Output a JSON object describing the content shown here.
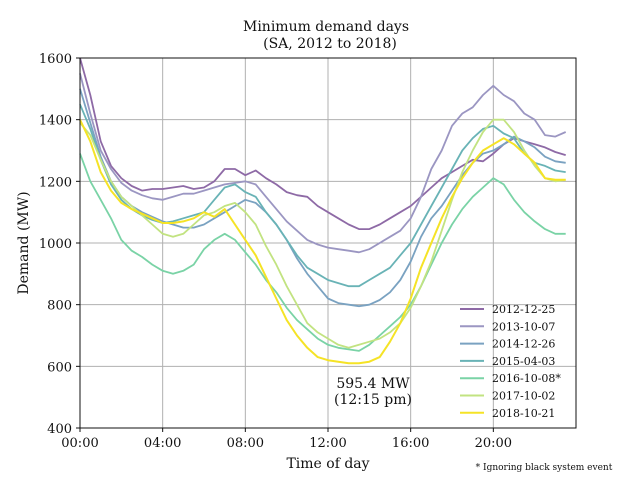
{
  "chart_data": {
    "type": "line",
    "title": "Minimum demand days",
    "subtitle": "(SA,  2012 to 2018)",
    "xlabel": "Time of day",
    "ylabel": "Demand (MW)",
    "ylim": [
      400,
      1600
    ],
    "xlim": [
      "00:00",
      "24:00"
    ],
    "x_ticks": [
      "00:00",
      "04:00",
      "08:00",
      "12:00",
      "16:00",
      "20:00"
    ],
    "y_ticks": [
      400,
      600,
      800,
      1000,
      1200,
      1400,
      1600
    ],
    "grid": true,
    "legend_position": "lower-right",
    "x": [
      "00:00",
      "00:30",
      "01:00",
      "01:30",
      "02:00",
      "02:30",
      "03:00",
      "03:30",
      "04:00",
      "04:30",
      "05:00",
      "05:30",
      "06:00",
      "06:30",
      "07:00",
      "07:30",
      "08:00",
      "08:30",
      "09:00",
      "09:30",
      "10:00",
      "10:30",
      "11:00",
      "11:30",
      "12:00",
      "12:30",
      "13:00",
      "13:30",
      "14:00",
      "14:30",
      "15:00",
      "15:30",
      "16:00",
      "16:30",
      "17:00",
      "17:30",
      "18:00",
      "18:30",
      "19:00",
      "19:30",
      "20:00",
      "20:30",
      "21:00",
      "21:30",
      "22:00",
      "22:30",
      "23:00",
      "23:30"
    ],
    "series": [
      {
        "name": "2012-12-25",
        "color": "#8e6aa6",
        "values": [
          1600,
          1480,
          1330,
          1250,
          1210,
          1185,
          1170,
          1175,
          1175,
          1180,
          1185,
          1175,
          1180,
          1200,
          1240,
          1240,
          1220,
          1235,
          1210,
          1190,
          1165,
          1155,
          1150,
          1120,
          1100,
          1080,
          1060,
          1045,
          1045,
          1060,
          1080,
          1100,
          1120,
          1150,
          1180,
          1210,
          1230,
          1250,
          1270,
          1265,
          1290,
          1320,
          1340,
          1330,
          1320,
          1310,
          1295,
          1285
        ]
      },
      {
        "name": "2013-10-07",
        "color": "#9b96c2",
        "values": [
          1550,
          1420,
          1300,
          1240,
          1195,
          1170,
          1155,
          1145,
          1140,
          1150,
          1160,
          1160,
          1170,
          1180,
          1190,
          1195,
          1200,
          1190,
          1150,
          1110,
          1070,
          1040,
          1010,
          995,
          985,
          980,
          975,
          970,
          980,
          1000,
          1020,
          1040,
          1080,
          1150,
          1240,
          1300,
          1380,
          1420,
          1440,
          1480,
          1510,
          1480,
          1460,
          1420,
          1400,
          1350,
          1345,
          1360
        ]
      },
      {
        "name": "2014-12-26",
        "color": "#7aa2c1",
        "values": [
          1500,
          1390,
          1280,
          1200,
          1150,
          1120,
          1100,
          1085,
          1070,
          1060,
          1050,
          1050,
          1060,
          1080,
          1100,
          1120,
          1140,
          1130,
          1100,
          1060,
          1010,
          950,
          900,
          860,
          820,
          805,
          800,
          795,
          800,
          815,
          840,
          880,
          940,
          1020,
          1080,
          1120,
          1170,
          1220,
          1260,
          1290,
          1300,
          1320,
          1345,
          1330,
          1310,
          1280,
          1265,
          1260
        ]
      },
      {
        "name": "2015-04-03",
        "color": "#69b3b6",
        "values": [
          1450,
          1370,
          1270,
          1190,
          1140,
          1110,
          1090,
          1075,
          1065,
          1070,
          1080,
          1090,
          1100,
          1140,
          1180,
          1190,
          1165,
          1150,
          1100,
          1060,
          1010,
          960,
          920,
          900,
          880,
          870,
          860,
          860,
          880,
          900,
          920,
          960,
          1000,
          1060,
          1120,
          1180,
          1240,
          1300,
          1340,
          1370,
          1380,
          1355,
          1340,
          1290,
          1260,
          1250,
          1235,
          1230
        ]
      },
      {
        "name": "2016-10-08*",
        "color": "#7ad3a6",
        "values": [
          1290,
          1200,
          1140,
          1080,
          1010,
          975,
          955,
          930,
          910,
          900,
          910,
          930,
          980,
          1010,
          1030,
          1010,
          970,
          930,
          880,
          840,
          790,
          750,
          720,
          690,
          670,
          660,
          655,
          650,
          670,
          700,
          730,
          760,
          800,
          860,
          930,
          1000,
          1060,
          1110,
          1150,
          1180,
          1210,
          1190,
          1140,
          1100,
          1070,
          1045,
          1030,
          1030
        ]
      },
      {
        "name": "2017-10-02",
        "color": "#c2e381",
        "values": [
          1390,
          1350,
          1270,
          1200,
          1150,
          1120,
          1090,
          1060,
          1030,
          1020,
          1030,
          1060,
          1090,
          1100,
          1120,
          1130,
          1100,
          1060,
          990,
          930,
          860,
          800,
          740,
          710,
          690,
          670,
          660,
          670,
          680,
          690,
          710,
          740,
          790,
          860,
          940,
          1040,
          1140,
          1230,
          1300,
          1360,
          1400,
          1400,
          1360,
          1300,
          1250,
          1210,
          1200,
          1205
        ]
      },
      {
        "name": "2018-10-21",
        "color": "#f5e326",
        "values": [
          1400,
          1330,
          1230,
          1170,
          1130,
          1110,
          1095,
          1080,
          1065,
          1065,
          1070,
          1080,
          1100,
          1085,
          1110,
          1060,
          1010,
          960,
          890,
          820,
          750,
          700,
          660,
          630,
          620,
          615,
          610,
          610,
          615,
          630,
          680,
          740,
          820,
          920,
          1000,
          1080,
          1150,
          1210,
          1260,
          1300,
          1320,
          1340,
          1320,
          1290,
          1260,
          1210,
          1205,
          1205
        ]
      }
    ],
    "annotations": [
      {
        "text": "595.4 MW",
        "x": "12:15",
        "y": 595.4
      },
      {
        "text": "(12:15 pm)"
      }
    ],
    "footnote": "* Ignoring black system event"
  }
}
